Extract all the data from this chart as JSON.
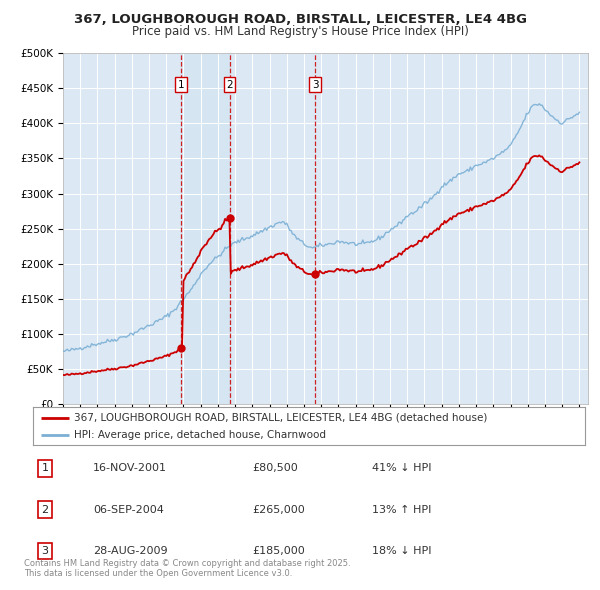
{
  "title_line1": "367, LOUGHBOROUGH ROAD, BIRSTALL, LEICESTER, LE4 4BG",
  "title_line2": "Price paid vs. HM Land Registry's House Price Index (HPI)",
  "legend_line1": "367, LOUGHBOROUGH ROAD, BIRSTALL, LEICESTER, LE4 4BG (detached house)",
  "legend_line2": "HPI: Average price, detached house, Charnwood",
  "price_color": "#cc0000",
  "hpi_color": "#7bafd4",
  "plot_bg_color": "#dce9f5",
  "sale_dates_t": [
    2001.878,
    2004.676,
    2009.657
  ],
  "sale_prices": [
    80500,
    265000,
    185000
  ],
  "sale_labels": [
    "1",
    "2",
    "3"
  ],
  "table_data": [
    [
      "1",
      "16-NOV-2001",
      "£80,500",
      "41% ↓ HPI"
    ],
    [
      "2",
      "06-SEP-2004",
      "£265,000",
      "13% ↑ HPI"
    ],
    [
      "3",
      "28-AUG-2009",
      "£185,000",
      "18% ↓ HPI"
    ]
  ],
  "footer_text": "Contains HM Land Registry data © Crown copyright and database right 2025.\nThis data is licensed under the Open Government Licence v3.0.",
  "ylim": [
    0,
    500000
  ],
  "ytick_values": [
    0,
    50000,
    100000,
    150000,
    200000,
    250000,
    300000,
    350000,
    400000,
    450000,
    500000
  ],
  "ytick_labels": [
    "£0",
    "£50K",
    "£100K",
    "£150K",
    "£200K",
    "£250K",
    "£300K",
    "£350K",
    "£400K",
    "£450K",
    "£500K"
  ],
  "hpi_anchors_t": [
    1995.0,
    1995.5,
    1996.0,
    1997.0,
    1998.0,
    1999.0,
    2000.0,
    2000.5,
    2001.0,
    2001.5,
    2002.0,
    2002.5,
    2003.0,
    2003.5,
    2004.0,
    2004.5,
    2005.0,
    2005.5,
    2006.0,
    2006.5,
    2007.0,
    2007.5,
    2007.8,
    2008.0,
    2008.5,
    2009.0,
    2009.5,
    2010.0,
    2010.5,
    2011.0,
    2011.5,
    2012.0,
    2012.5,
    2013.0,
    2013.5,
    2014.0,
    2014.5,
    2015.0,
    2015.5,
    2016.0,
    2016.5,
    2017.0,
    2017.5,
    2018.0,
    2018.5,
    2019.0,
    2019.5,
    2020.0,
    2020.5,
    2021.0,
    2021.5,
    2022.0,
    2022.3,
    2022.7,
    2023.0,
    2023.5,
    2024.0,
    2024.5,
    2025.0
  ],
  "hpi_anchors_v": [
    75000,
    77000,
    80000,
    86000,
    92000,
    100000,
    112000,
    118000,
    125000,
    135000,
    150000,
    165000,
    185000,
    200000,
    210000,
    222000,
    230000,
    235000,
    240000,
    246000,
    252000,
    258000,
    260000,
    255000,
    238000,
    228000,
    222000,
    226000,
    228000,
    232000,
    230000,
    228000,
    228000,
    232000,
    238000,
    248000,
    256000,
    268000,
    275000,
    285000,
    295000,
    310000,
    318000,
    328000,
    332000,
    340000,
    344000,
    350000,
    358000,
    368000,
    390000,
    415000,
    425000,
    428000,
    420000,
    408000,
    400000,
    408000,
    415000
  ]
}
